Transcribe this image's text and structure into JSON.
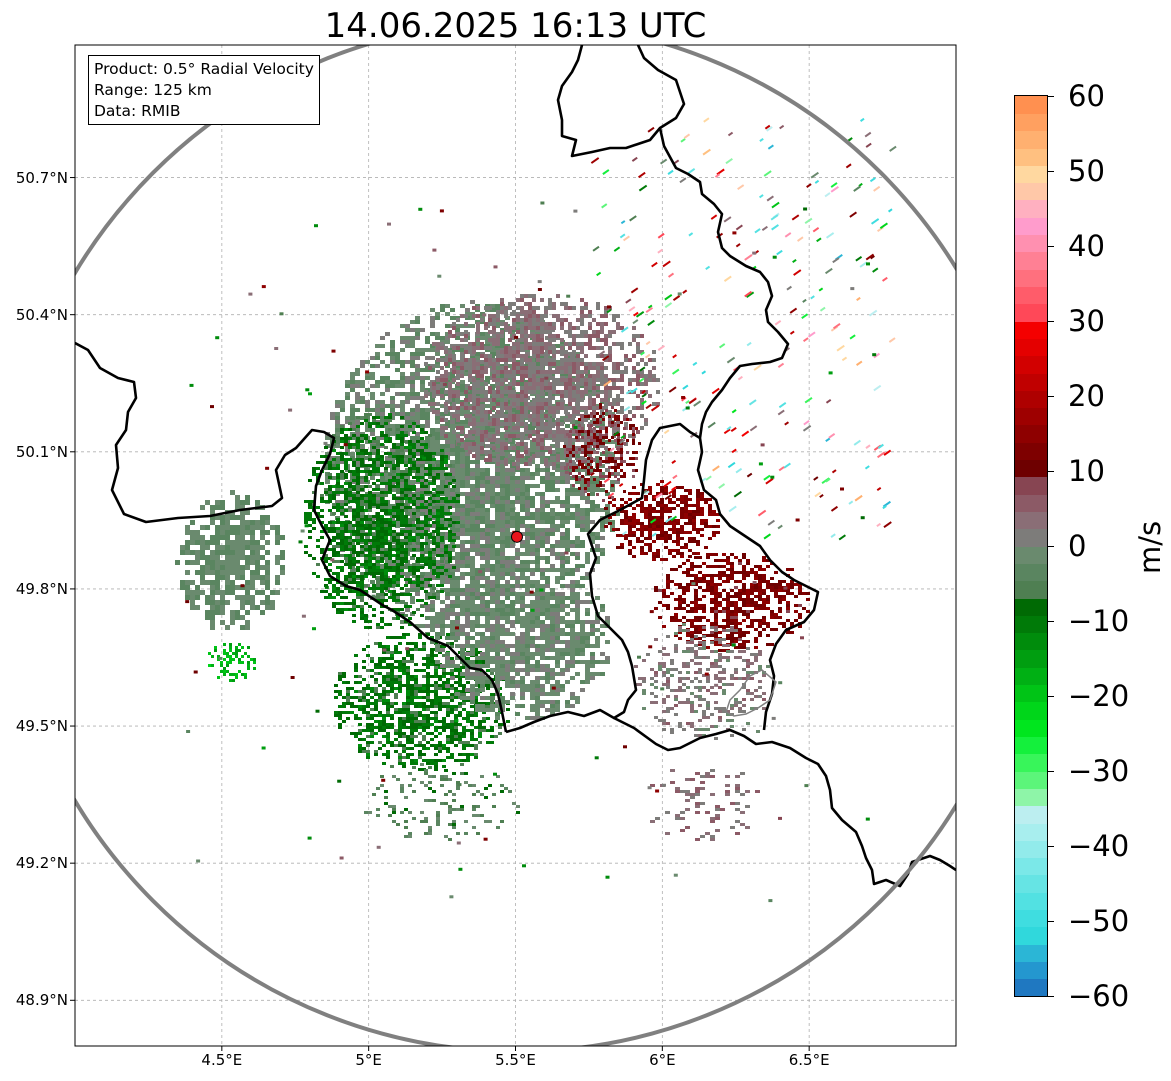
{
  "title": "14.06.2025 16:13 UTC",
  "info": {
    "product": "Product: 0.5° Radial Velocity",
    "range": "Range: 125 km",
    "data": "Data: RMIB"
  },
  "axes": {
    "lat_labels": [
      "50.7°N",
      "50.4°N",
      "50.1°N",
      "49.8°N",
      "49.5°N",
      "49.2°N",
      "48.9°N"
    ],
    "lon_labels": [
      "4.5°E",
      "5°E",
      "5.5°E",
      "6°E",
      "6.5°E"
    ],
    "lat_values": [
      50.7,
      50.4,
      50.1,
      49.8,
      49.5,
      49.2,
      48.9
    ],
    "lon_values": [
      4.5,
      5.0,
      5.5,
      6.0,
      6.5
    ],
    "lat_range": [
      48.8,
      50.99
    ],
    "lon_range": [
      4.0,
      7.0
    ],
    "grid": true
  },
  "radar": {
    "site_lat": 49.914,
    "site_lon": 5.505,
    "range_km": 125,
    "site_color": "#e8141c",
    "ring_color": "#808080"
  },
  "colorbar": {
    "unit": "m/s",
    "min": -60,
    "max": 60,
    "tick_labels": [
      "60",
      "50",
      "40",
      "30",
      "20",
      "10",
      "0",
      "−10",
      "−20",
      "−30",
      "−40",
      "−50",
      "−60"
    ],
    "tick_values": [
      60,
      50,
      40,
      30,
      20,
      10,
      0,
      -10,
      -20,
      -30,
      -40,
      -50,
      -60
    ],
    "colors_bottom_to_top": [
      "#1f78c1",
      "#2497cf",
      "#2bb6d6",
      "#30d8dc",
      "#3fdde0",
      "#52e1e2",
      "#66e4e4",
      "#7be8e8",
      "#92ebeb",
      "#a8eeee",
      "#bceef0",
      "#8ef5a8",
      "#5cf57a",
      "#38f55a",
      "#14f03c",
      "#00e61e",
      "#00d61a",
      "#00c416",
      "#00b014",
      "#009e10",
      "#008c0c",
      "#007a08",
      "#006a04",
      "#4f7f52",
      "#5a8560",
      "#6a8a6e",
      "#7d7c7a",
      "#8a6e76",
      "#8c5a66",
      "#874552",
      "#6e0000",
      "#7e0000",
      "#8e0000",
      "#9e0000",
      "#ae0000",
      "#c00000",
      "#d20000",
      "#e40000",
      "#f40000",
      "#ff4858",
      "#ff5c6a",
      "#ff707e",
      "#ff8094",
      "#ff90b0",
      "#ff9ccc",
      "#ffb0c0",
      "#ffc8a8",
      "#ffd8a0",
      "#ffc080",
      "#ffb070",
      "#ffa060",
      "#ff9050"
    ]
  }
}
